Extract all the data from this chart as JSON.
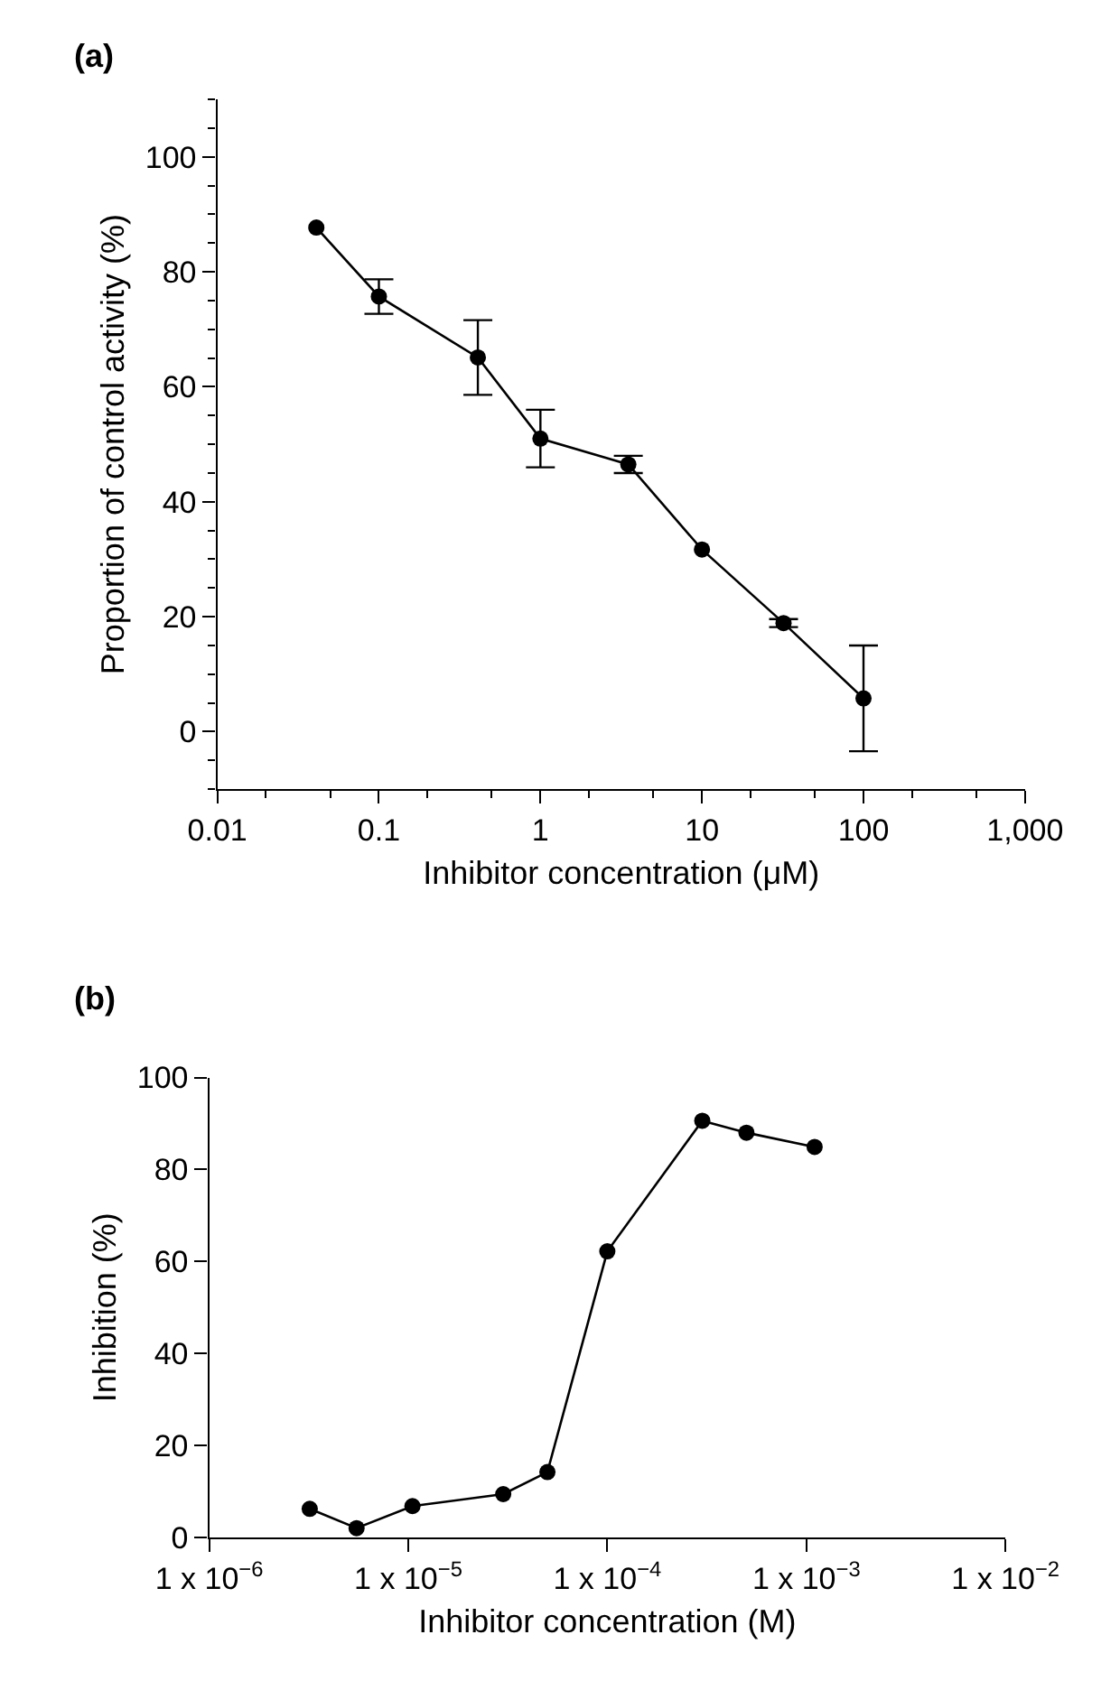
{
  "chart_data": [
    {
      "type": "line",
      "title": "(a)",
      "xlabel": "Inhibitor concentration (μM)",
      "ylabel": "Proportion of control activity (%)",
      "log": "x",
      "marker": "circle",
      "line_style": "solid",
      "x": [
        0.041,
        0.1,
        0.41,
        1,
        3.5,
        10,
        32,
        100
      ],
      "series": [
        {
          "color": "#000000",
          "values": [
            87.7,
            75.7,
            65.1,
            51.0,
            46.5,
            31.7,
            18.9,
            5.8
          ],
          "errors": [
            null,
            3,
            6.5,
            5,
            1.5,
            null,
            0.7,
            9.2
          ]
        }
      ],
      "xlim": [
        0.01,
        1000
      ],
      "xticks": [
        0.01,
        0.1,
        1,
        10,
        100,
        {
          "value": 1000,
          "label": "1,000"
        }
      ],
      "ylim": [
        -10,
        110
      ],
      "yticks": [
        0,
        20,
        40,
        60,
        80,
        100
      ]
    },
    {
      "type": "line",
      "title": "(b)",
      "xlabel": "Inhibitor concentration (M)",
      "ylabel": "Inhibition (%)",
      "log": "x",
      "marker": "circle",
      "line_style": "solid",
      "x": [
        3.2e-06,
        5.5e-06,
        1.05e-05,
        3e-05,
        5e-05,
        0.0001,
        0.0003,
        0.0005,
        0.0011
      ],
      "series": [
        {
          "color": "#000000",
          "values": [
            6.2,
            2.0,
            6.8,
            9.4,
            14.2,
            62.2,
            90.6,
            88.0,
            84.9
          ]
        }
      ],
      "xlim": [
        1e-06,
        0.01
      ],
      "xticks": [
        {
          "value": 1e-06,
          "label": "1 x 10$^{−6}$"
        },
        {
          "value": 1e-05,
          "label": "1 x 10$^{−5}$"
        },
        {
          "value": 0.0001,
          "label": "1 x 10$^{−4}$"
        },
        {
          "value": 0.001,
          "label": "1 x 10$^{−3}$"
        },
        {
          "value": 0.01,
          "label": "1 x 10$^{−2}$"
        }
      ],
      "ylim": [
        0,
        100
      ],
      "yticks": [
        0,
        20,
        40,
        60,
        80,
        100
      ]
    }
  ]
}
